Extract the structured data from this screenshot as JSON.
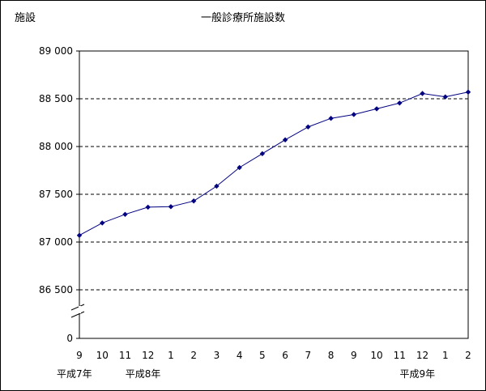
{
  "chart_data": {
    "type": "line",
    "title": "一般診療所施設数",
    "ylabel": "施設",
    "xlabel": "",
    "categories": [
      "9",
      "10",
      "11",
      "12",
      "1",
      "2",
      "3",
      "4",
      "5",
      "6",
      "7",
      "8",
      "9",
      "10",
      "11",
      "12",
      "1",
      "2"
    ],
    "era_labels": [
      {
        "at_index": 0,
        "text": "平成7年"
      },
      {
        "at_index": 3,
        "text": "平成8年"
      },
      {
        "at_index": 15,
        "text": "平成9年"
      }
    ],
    "y_ticks": [
      "89 000",
      "88 500",
      "88 000",
      "87 500",
      "87 000",
      "86 500",
      "0"
    ],
    "ylim": [
      86500,
      89000
    ],
    "axis_break": true,
    "grid": "dashed-horizontal",
    "series": [
      {
        "values": [
          87070,
          87200,
          87290,
          87365,
          87370,
          87430,
          87585,
          87780,
          87925,
          88070,
          88205,
          88295,
          88335,
          88395,
          88455,
          88555,
          88520,
          88570
        ],
        "color": "#000080"
      }
    ]
  }
}
